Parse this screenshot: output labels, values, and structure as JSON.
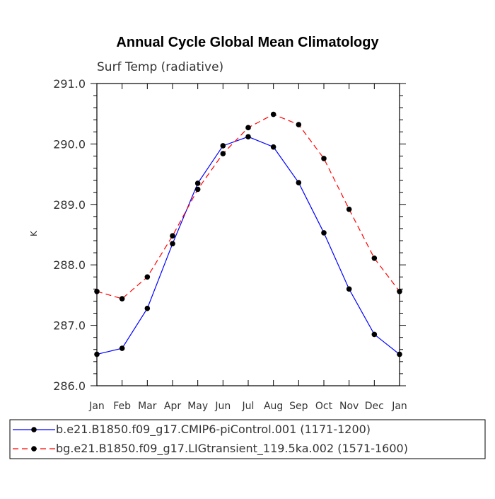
{
  "chart_data": {
    "type": "line",
    "title": "Annual Cycle Global Mean Climatology",
    "subtitle": "Surf Temp (radiative)",
    "xlabel": "",
    "ylabel": "K",
    "categories": [
      "Jan",
      "Feb",
      "Mar",
      "Apr",
      "May",
      "Jun",
      "Jul",
      "Aug",
      "Sep",
      "Oct",
      "Nov",
      "Dec",
      "Jan"
    ],
    "ylim": [
      286.0,
      291.0
    ],
    "yticks": [
      "286.0",
      "287.0",
      "288.0",
      "289.0",
      "290.0",
      "291.0"
    ],
    "grid": false,
    "legend_position": "bottom",
    "series": [
      {
        "name": "b.e21.B1850.f09_g17.CMIP6-piControl.001 (1171-1200)",
        "color": "#0000ff",
        "dash": "solid",
        "marker": "filled-circle",
        "values": [
          286.52,
          286.62,
          287.28,
          288.35,
          289.35,
          289.97,
          290.12,
          289.95,
          289.36,
          288.53,
          287.6,
          286.85,
          286.52
        ]
      },
      {
        "name": "bg.e21.B1850.f09_g17.LIGtransient_119.5ka.002 (1571-1600)",
        "color": "#ff0000",
        "dash": "dashed",
        "marker": "filled-circle",
        "values": [
          287.56,
          287.44,
          287.8,
          288.48,
          289.25,
          289.84,
          290.27,
          290.49,
          290.32,
          289.76,
          288.92,
          288.11,
          287.56
        ]
      }
    ]
  }
}
